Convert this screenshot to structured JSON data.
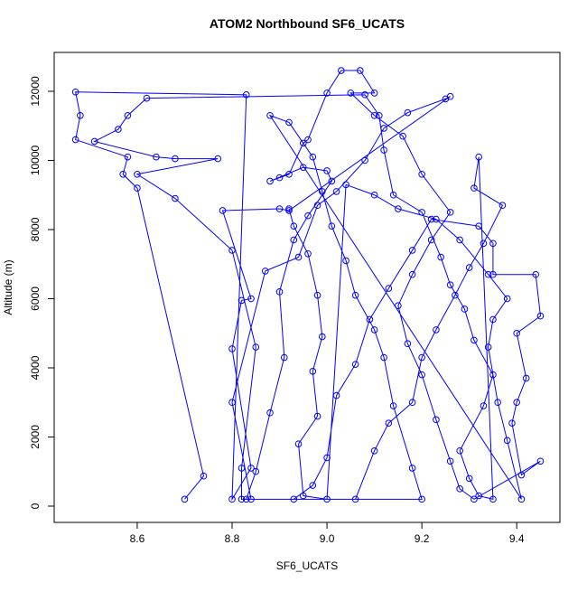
{
  "chart_data": {
    "type": "line",
    "title": "ATOM2 Northbound SF6_UCATS",
    "x_label": "SF6_UCATS",
    "y_label": "Altitude (m)",
    "x": [
      8.7,
      8.74,
      8.6,
      8.57,
      8.58,
      8.47,
      8.48,
      8.47,
      8.83,
      8.8,
      8.84,
      8.8,
      8.82,
      8.84,
      8.78,
      8.9,
      8.92,
      9.26,
      9.25,
      9.17,
      9.12,
      9.08,
      9.02,
      8.98,
      8.94,
      8.87,
      8.8,
      8.84,
      8.93,
      8.97,
      9.0,
      9.02,
      9.06,
      9.09,
      9.13,
      9.18,
      9.22,
      9.32,
      9.35,
      9.35,
      9.44,
      9.45,
      9.4,
      9.42,
      9.4,
      9.39,
      9.41,
      9.45,
      9.31,
      9.28,
      9.26,
      9.23,
      9.2,
      9.17,
      9.15,
      9.18,
      9.22,
      9.26,
      9.2,
      9.16,
      9.1,
      9.05,
      9.1,
      9.07,
      9.03,
      9.0,
      8.96,
      8.95,
      8.92,
      8.9,
      8.88,
      8.95,
      9.0,
      9.01,
      8.96,
      8.93,
      8.9,
      8.91,
      8.88,
      8.85,
      8.83,
      9.06,
      9.1,
      9.13,
      9.18,
      9.2,
      9.23,
      9.27,
      9.3,
      9.33,
      9.37,
      9.31,
      9.32,
      9.35,
      9.32,
      9.3,
      9.28,
      9.33,
      9.35,
      9.31,
      9.29,
      9.26,
      9.24,
      9.2,
      9.14,
      9.12,
      9.11,
      9.08,
      8.62,
      8.58,
      8.56,
      8.51,
      8.64,
      8.68,
      8.77,
      8.6,
      8.68,
      8.8,
      8.85,
      8.82,
      8.82,
      9.2,
      9.18,
      9.14,
      9.12,
      9.1,
      9.06,
      9.04,
      9.01,
      8.99,
      8.97,
      8.92,
      8.88,
      9.41,
      9.38,
      9.36,
      9.34,
      9.35,
      9.38,
      9.34,
      9.28,
      9.23,
      9.15,
      9.1,
      9.04,
      9.0,
      8.95,
      8.94,
      8.98,
      8.97,
      8.99,
      8.98,
      8.96,
      8.93,
      8.92
    ],
    "series": [
      {
        "color": "#0000ff",
        "values": [
          200,
          870,
          9200,
          9600,
          10100,
          10600,
          11300,
          11980,
          11900,
          200,
          1100,
          4550,
          5950,
          6000,
          8550,
          8600,
          8550,
          11850,
          11780,
          11380,
          10930,
          10000,
          9100,
          8700,
          7200,
          6800,
          3000,
          200,
          200,
          600,
          1400,
          3200,
          4100,
          5400,
          6300,
          7400,
          8300,
          8100,
          7600,
          6700,
          6700,
          5500,
          5000,
          3700,
          3000,
          2400,
          900,
          1300,
          200,
          500,
          1300,
          2500,
          3800,
          4700,
          5800,
          6700,
          7700,
          8500,
          9600,
          10700,
          11300,
          11950,
          11950,
          12600,
          12600,
          11950,
          10600,
          10500,
          9600,
          9500,
          9400,
          9800,
          9700,
          9400,
          8400,
          7700,
          6200,
          4300,
          2700,
          1000,
          200,
          200,
          1600,
          2400,
          3000,
          4300,
          5100,
          6100,
          6900,
          7600,
          8700,
          9200,
          10100,
          200,
          300,
          800,
          1600,
          2900,
          3800,
          4800,
          5700,
          6400,
          7200,
          8500,
          9000,
          10300,
          11300,
          11900,
          11800,
          11300,
          10900,
          10550,
          10100,
          10050,
          10050,
          9600,
          8900,
          7400,
          4600,
          1100,
          200,
          200,
          1100,
          2900,
          4300,
          5100,
          6100,
          7100,
          8100,
          9100,
          10100,
          11100,
          11300,
          200,
          1900,
          3000,
          4600,
          5400,
          6000,
          6700,
          7700,
          8300,
          8600,
          9000,
          9300,
          200,
          300,
          1800,
          2600,
          3900,
          4900,
          6100,
          7300,
          8100,
          8600
        ]
      }
    ],
    "xlim": [
      8.425,
      9.491
    ],
    "ylim": [
      -471,
      13124
    ],
    "xticks": [
      8.6,
      8.8,
      {
        "value": 9,
        "label": "9.0"
      },
      9.2,
      9.4
    ],
    "yticks": [
      0,
      2000,
      4000,
      6000,
      8000,
      10000,
      12000
    ]
  }
}
